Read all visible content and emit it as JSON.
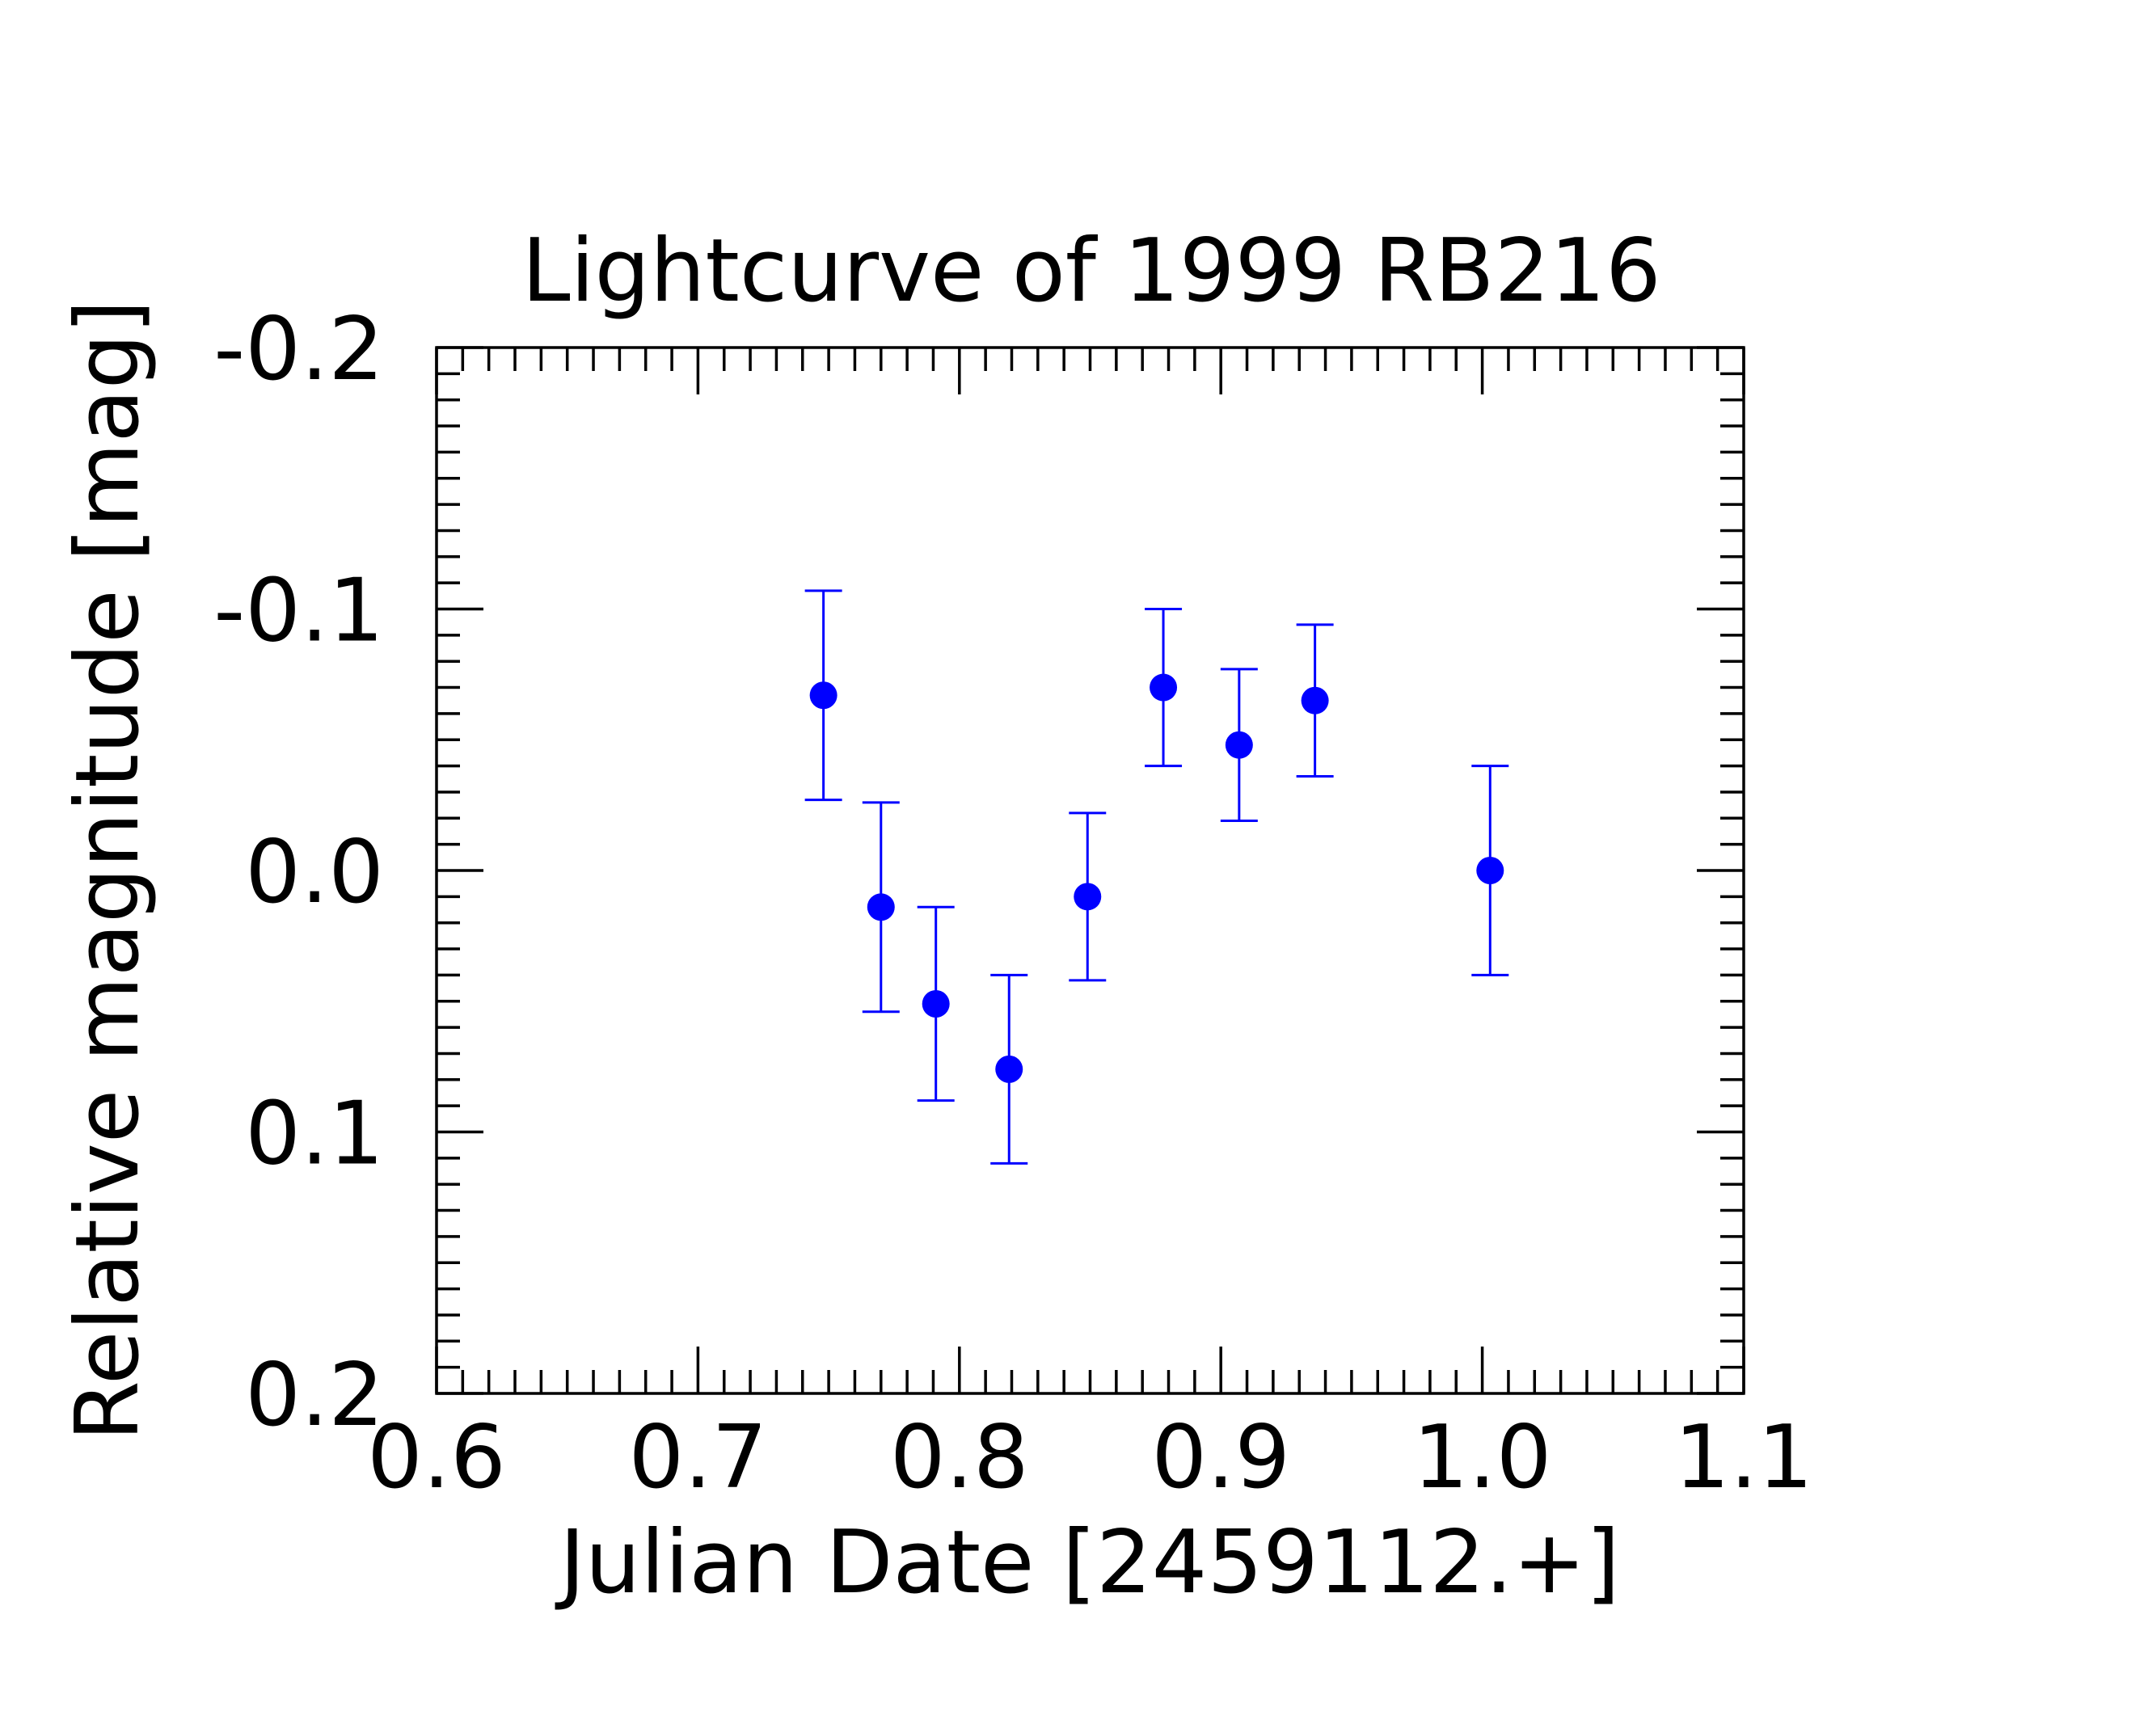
{
  "chart_data": {
    "type": "scatter",
    "title": "Lightcurve of 1999 RB216",
    "xlabel": "Julian Date [2459112.+]",
    "ylabel": "Relative magnitude [mag]",
    "xlim": [
      0.6,
      1.1
    ],
    "ylim": [
      0.2,
      -0.2
    ],
    "y_inverted": true,
    "x_ticks": [
      "0.6",
      "0.7",
      "0.8",
      "0.9",
      "1.0",
      "1.1"
    ],
    "y_ticks": [
      "-0.2",
      "-0.1",
      "0.0",
      "0.1",
      "0.2"
    ],
    "grid": false,
    "marker_color": "#0000ff",
    "series": [
      {
        "x": [
          0.748,
          0.77,
          0.791,
          0.819,
          0.849,
          0.878,
          0.907,
          0.936,
          1.003
        ],
        "y": [
          -0.067,
          0.014,
          0.051,
          0.076,
          0.01,
          -0.07,
          -0.048,
          -0.065,
          0.0
        ],
        "yerr": [
          0.04,
          0.04,
          0.037,
          0.036,
          0.032,
          0.03,
          0.029,
          0.029,
          0.04
        ]
      }
    ]
  }
}
